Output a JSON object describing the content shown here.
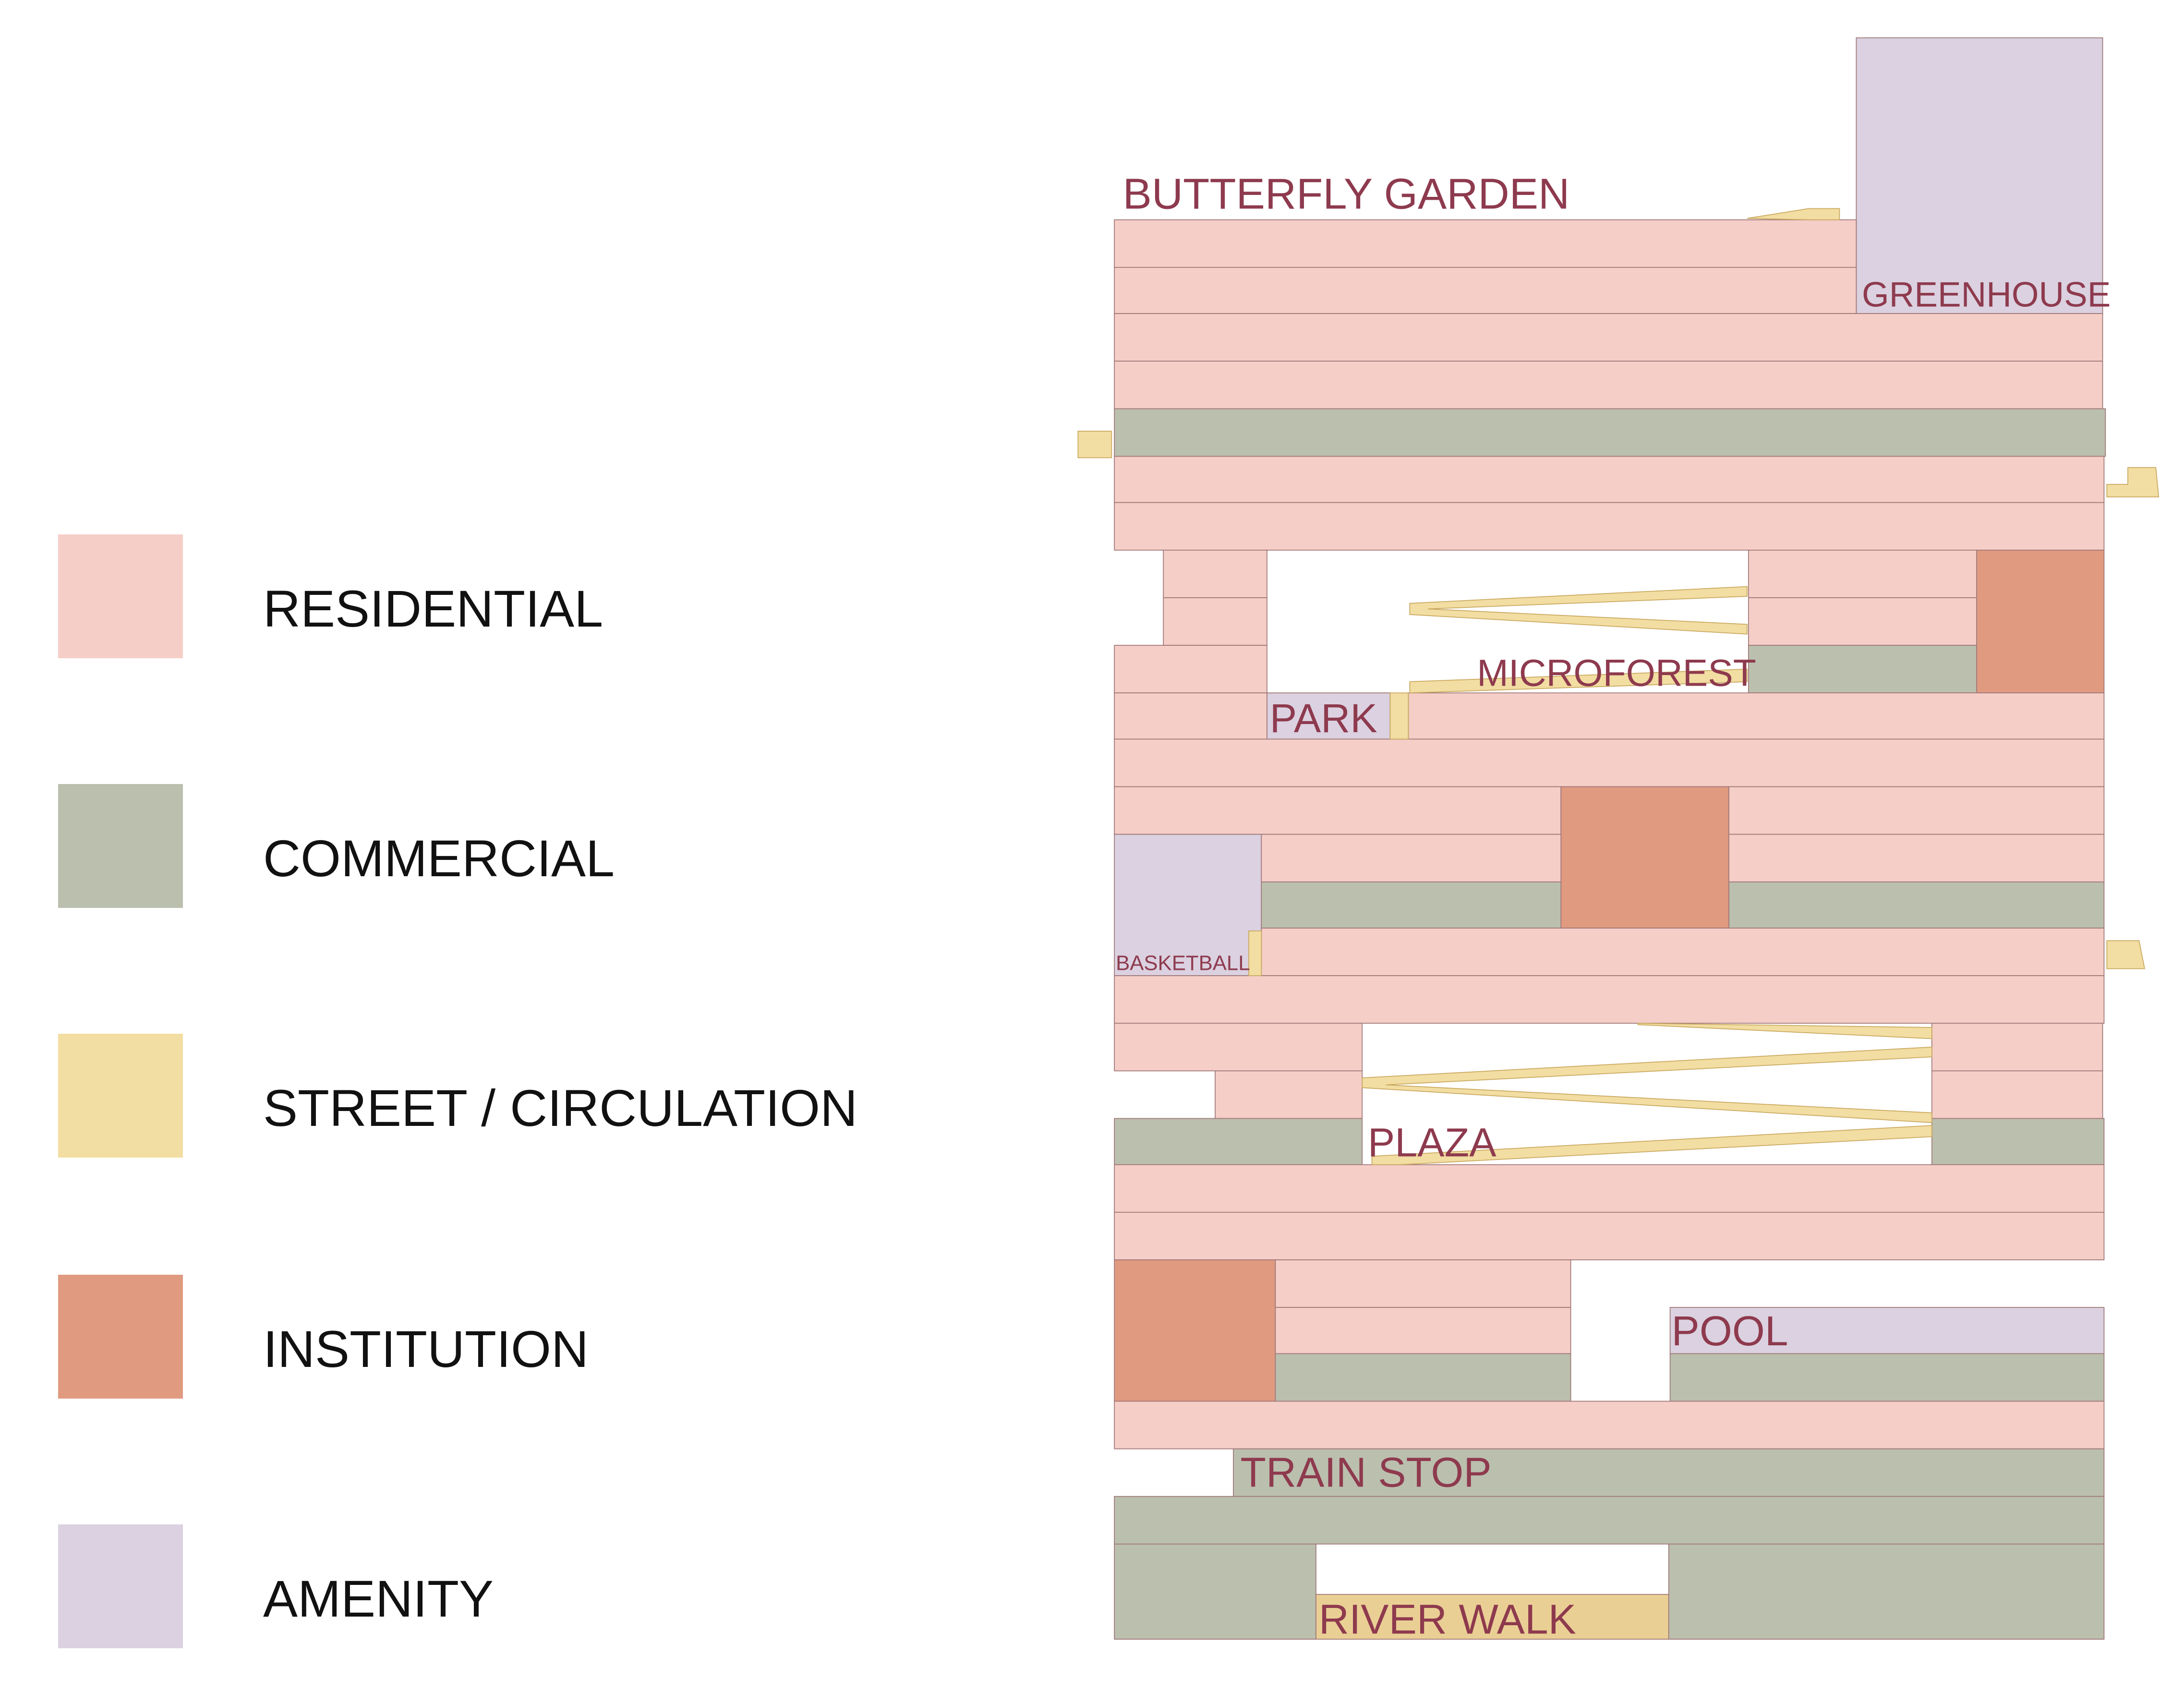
{
  "colors": {
    "residential": "#F5CEC7",
    "commercial": "#BBBFAE",
    "street": "#F2DDA2",
    "institution": "#E09A80",
    "amenity": "#DBD1E0",
    "riverwalk": "#EACF95",
    "outline": "#A07878",
    "label": "#8E3A4E"
  },
  "legend": {
    "items": [
      {
        "key": "residential",
        "label": "RESIDENTIAL"
      },
      {
        "key": "commercial",
        "label": "COMMERCIAL"
      },
      {
        "key": "street",
        "label": "STREET / CIRCULATION"
      },
      {
        "key": "institution",
        "label": "INSTITUTION"
      },
      {
        "key": "amenity",
        "label": "AMENITY"
      }
    ]
  },
  "labels": {
    "butterfly_garden": "BUTTERFLY GARDEN",
    "greenhouse": "GREENHOUSE",
    "microforest": "MICROFOREST",
    "park": "PARK",
    "basketball": "BASKETBALL",
    "plaza": "PLAZA",
    "pool": "POOL",
    "train_stop": "TRAIN STOP",
    "river_walk": "RIVER WALK"
  }
}
